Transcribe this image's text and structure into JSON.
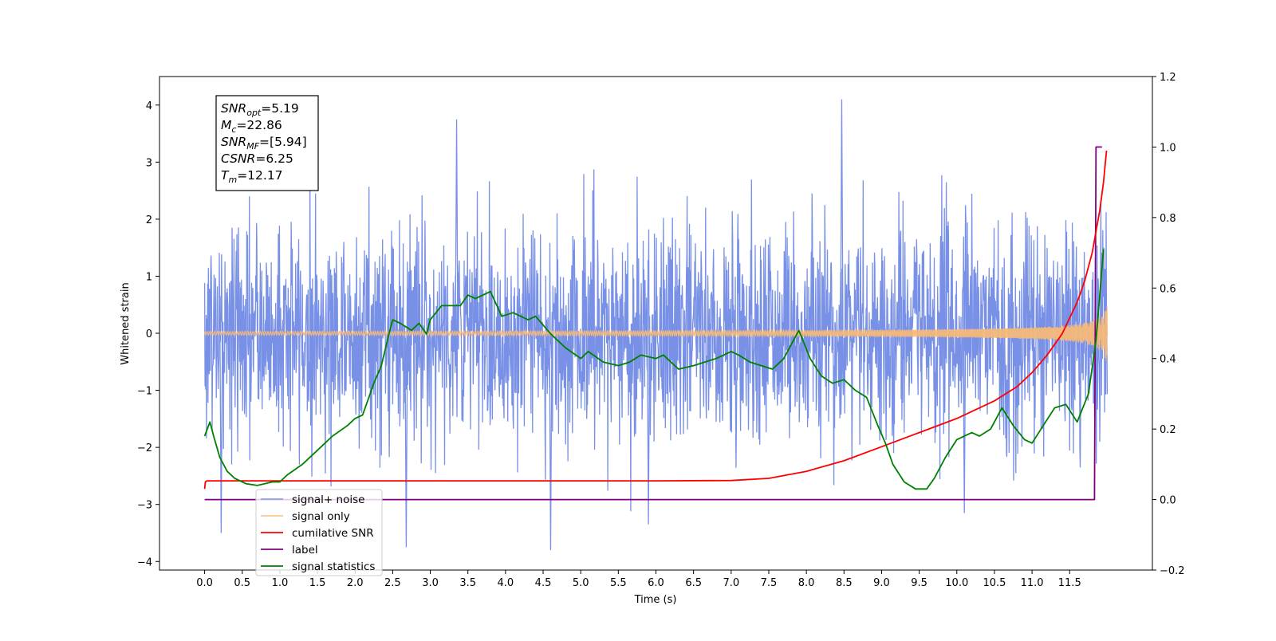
{
  "chart_data": {
    "type": "line",
    "xlabel": "Time (s)",
    "ylabel": "Whitened strain",
    "xlim": [
      -0.6,
      12.6
    ],
    "ylim": [
      -4.15,
      4.5
    ],
    "y2lim": [
      -0.2,
      1.2
    ],
    "x_ticks": [
      "0.0",
      "0.5",
      "1.0",
      "1.5",
      "2.0",
      "2.5",
      "3.0",
      "3.5",
      "4.0",
      "4.5",
      "5.0",
      "5.5",
      "6.0",
      "6.5",
      "7.0",
      "7.5",
      "8.0",
      "8.5",
      "9.0",
      "9.5",
      "10.0",
      "10.5",
      "11.0",
      "11.5"
    ],
    "y_ticks": [
      "−4",
      "−3",
      "−2",
      "−1",
      "0",
      "1",
      "2",
      "3",
      "4"
    ],
    "y2_ticks": [
      "−0.2",
      "0.0",
      "0.2",
      "0.4",
      "0.6",
      "0.8",
      "1.0",
      "1.2"
    ],
    "grid": false,
    "legend_position": "lower-left",
    "annotation": {
      "lines": [
        {
          "main": "SNR",
          "sub": "opt",
          "rest": "=5.19"
        },
        {
          "main": "M",
          "sub": "c",
          "rest": "=22.86"
        },
        {
          "main": "SNR",
          "sub": "MF",
          "rest": "=[5.94]"
        },
        {
          "main": "CSNR",
          "sub": "",
          "rest": "=6.25"
        },
        {
          "main": "T",
          "sub": "m",
          "rest": "=12.17"
        }
      ]
    },
    "series": [
      {
        "name": "signal+ noise",
        "axis": "left",
        "color": "#7890e6",
        "description": "noise-dominated whitened strain, roughly within ±2.5 with spikes near ±4",
        "x_range": [
          0.0,
          12.0
        ],
        "std": 1.0,
        "extremes": [
          [
            3.35,
            3.75
          ],
          [
            8.47,
            4.1
          ],
          [
            4.6,
            -3.8
          ],
          [
            2.68,
            -3.75
          ],
          [
            0.22,
            -3.5
          ],
          [
            5.9,
            -3.35
          ],
          [
            10.1,
            -3.15
          ]
        ]
      },
      {
        "name": "signal only",
        "axis": "left",
        "color": "#f5b97a",
        "description": "chirp, amplitude near 0 rising to about ±0.5 at t≈12",
        "x_range": [
          0.0,
          12.0
        ]
      },
      {
        "name": "cumilative SNR",
        "axis": "right",
        "color": "#ff0000",
        "x": [
          0.0,
          0.01,
          0.03,
          0.5,
          2.0,
          4.0,
          6.0,
          7.0,
          7.5,
          8.0,
          8.5,
          9.0,
          9.5,
          10.0,
          10.5,
          10.8,
          11.0,
          11.2,
          11.4,
          11.6,
          11.7,
          11.8,
          11.9,
          11.95,
          11.99
        ],
        "values": [
          0.03,
          0.05,
          0.053,
          0.053,
          0.053,
          0.053,
          0.053,
          0.054,
          0.06,
          0.08,
          0.11,
          0.15,
          0.19,
          0.23,
          0.28,
          0.32,
          0.36,
          0.41,
          0.47,
          0.56,
          0.62,
          0.7,
          0.82,
          0.9,
          0.99
        ]
      },
      {
        "name": "label",
        "axis": "right",
        "color": "#800080",
        "x": [
          0.0,
          11.83,
          11.85,
          11.93
        ],
        "values": [
          0.0,
          0.0,
          1.0,
          1.0
        ]
      },
      {
        "name": "signal statistics",
        "axis": "right",
        "color": "#008000",
        "x": [
          0.0,
          0.07,
          0.12,
          0.2,
          0.3,
          0.4,
          0.55,
          0.7,
          0.9,
          1.0,
          1.1,
          1.3,
          1.5,
          1.7,
          1.9,
          2.0,
          2.1,
          2.25,
          2.35,
          2.45,
          2.5,
          2.6,
          2.75,
          2.85,
          2.95,
          3.0,
          3.15,
          3.4,
          3.5,
          3.6,
          3.8,
          3.95,
          4.1,
          4.3,
          4.4,
          4.6,
          4.8,
          5.0,
          5.1,
          5.3,
          5.5,
          5.65,
          5.8,
          6.0,
          6.1,
          6.3,
          6.5,
          6.65,
          6.8,
          7.0,
          7.1,
          7.25,
          7.4,
          7.55,
          7.7,
          7.9,
          8.05,
          8.2,
          8.35,
          8.5,
          8.65,
          8.8,
          8.95,
          9.05,
          9.15,
          9.3,
          9.45,
          9.6,
          9.7,
          9.85,
          10.0,
          10.2,
          10.3,
          10.45,
          10.6,
          10.75,
          10.9,
          11.0,
          11.15,
          11.3,
          11.45,
          11.6,
          11.75,
          11.85,
          11.95
        ],
        "values": [
          0.18,
          0.22,
          0.18,
          0.12,
          0.08,
          0.06,
          0.045,
          0.04,
          0.05,
          0.05,
          0.07,
          0.1,
          0.14,
          0.18,
          0.21,
          0.23,
          0.24,
          0.33,
          0.38,
          0.47,
          0.51,
          0.5,
          0.48,
          0.5,
          0.47,
          0.51,
          0.55,
          0.55,
          0.58,
          0.57,
          0.59,
          0.52,
          0.53,
          0.51,
          0.52,
          0.47,
          0.43,
          0.4,
          0.42,
          0.39,
          0.38,
          0.39,
          0.41,
          0.4,
          0.41,
          0.37,
          0.38,
          0.39,
          0.4,
          0.42,
          0.41,
          0.39,
          0.38,
          0.37,
          0.4,
          0.48,
          0.4,
          0.35,
          0.33,
          0.34,
          0.31,
          0.29,
          0.21,
          0.16,
          0.1,
          0.05,
          0.03,
          0.03,
          0.06,
          0.12,
          0.17,
          0.19,
          0.18,
          0.2,
          0.26,
          0.21,
          0.17,
          0.16,
          0.21,
          0.26,
          0.27,
          0.22,
          0.3,
          0.45,
          0.71
        ]
      }
    ],
    "legend_entries": [
      {
        "label": "signal+ noise",
        "color": "#7890e6"
      },
      {
        "label": "signal only",
        "color": "#f5b97a"
      },
      {
        "label": "cumilative SNR",
        "color": "#ff0000"
      },
      {
        "label": "label",
        "color": "#800080"
      },
      {
        "label": "signal statistics",
        "color": "#008000"
      }
    ]
  }
}
